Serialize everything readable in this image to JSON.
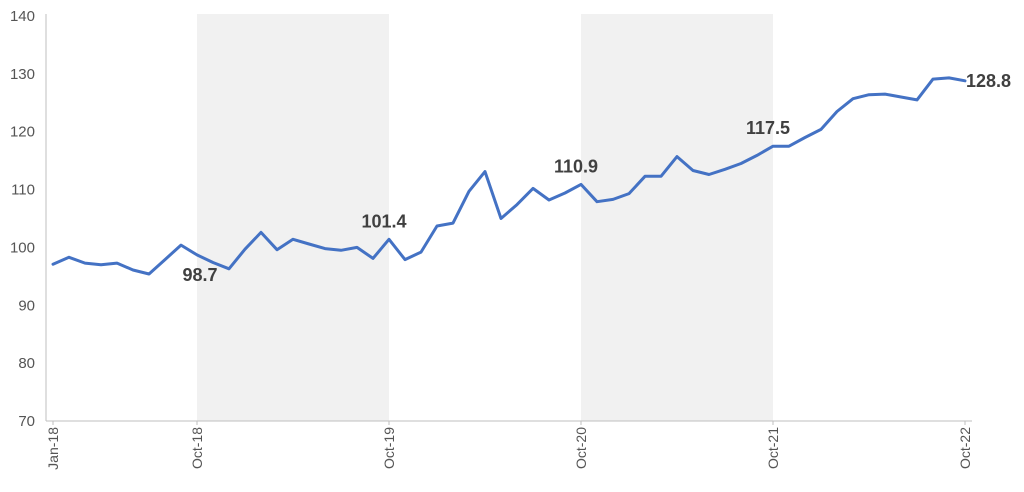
{
  "chart_data": {
    "type": "line",
    "x": [
      "Jan-18",
      "Feb-18",
      "Mar-18",
      "Apr-18",
      "May-18",
      "Jun-18",
      "Jul-18",
      "Aug-18",
      "Sep-18",
      "Oct-18",
      "Nov-18",
      "Dec-18",
      "Jan-19",
      "Feb-19",
      "Mar-19",
      "Apr-19",
      "May-19",
      "Jun-19",
      "Jul-19",
      "Aug-19",
      "Sep-19",
      "Oct-19",
      "Nov-19",
      "Dec-19",
      "Jan-20",
      "Feb-20",
      "Mar-20",
      "Apr-20",
      "May-20",
      "Jun-20",
      "Jul-20",
      "Aug-20",
      "Sep-20",
      "Oct-20",
      "Nov-20",
      "Dec-20",
      "Jan-21",
      "Feb-21",
      "Mar-21",
      "Apr-21",
      "May-21",
      "Jun-21",
      "Jul-21",
      "Aug-21",
      "Sep-21",
      "Oct-21",
      "Nov-21",
      "Dec-21",
      "Jan-22",
      "Feb-22",
      "Mar-22",
      "Apr-22",
      "May-22",
      "Jun-22",
      "Jul-22",
      "Aug-22",
      "Sep-22",
      "Oct-22"
    ],
    "series": [
      {
        "color": "#4472C4",
        "values": [
          97.1,
          98.3,
          97.3,
          97.0,
          97.3,
          96.1,
          95.4,
          97.9,
          100.4,
          98.7,
          97.4,
          96.3,
          99.7,
          102.6,
          99.6,
          101.4,
          100.6,
          99.8,
          99.5,
          100.0,
          98.1,
          101.4,
          97.9,
          99.2,
          103.7,
          104.2,
          109.7,
          113.1,
          105.0,
          107.4,
          110.2,
          108.2,
          109.4,
          110.9,
          107.9,
          108.3,
          109.3,
          112.3,
          112.3,
          115.7,
          113.3,
          112.6,
          113.5,
          114.5,
          115.9,
          117.5,
          117.5,
          119.0,
          120.4,
          123.5,
          125.7,
          126.4,
          126.5,
          126.0,
          125.5,
          129.1,
          129.3,
          128.8
        ]
      }
    ],
    "y_ticks": [
      "140",
      "130",
      "120",
      "110",
      "100",
      "90",
      "80",
      "70"
    ],
    "x_ticks": [
      "Jan-18",
      "Oct-18",
      "Oct-19",
      "Oct-20",
      "Oct-21",
      "Oct-22"
    ],
    "ylim": [
      70,
      140
    ],
    "shaded_periods": [
      [
        "Oct-18",
        "Oct-19"
      ],
      [
        "Oct-20",
        "Oct-21"
      ]
    ],
    "shade_color": "#F1F1F1",
    "axis_color": "#BFBFBF",
    "annotations": [
      {
        "x": "Oct-18",
        "value": 98.7,
        "label": "98.7",
        "position": "below"
      },
      {
        "x": "Oct-19",
        "value": 101.4,
        "label": "101.4",
        "position": "above"
      },
      {
        "x": "Oct-20",
        "value": 110.9,
        "label": "110.9",
        "position": "above"
      },
      {
        "x": "Oct-21",
        "value": 117.5,
        "label": "117.5",
        "position": "above"
      },
      {
        "x": "Oct-22",
        "value": 128.8,
        "label": "128.8",
        "position": "right"
      }
    ],
    "grid": false,
    "legend": "none",
    "title": "",
    "xlabel": "",
    "ylabel": ""
  }
}
